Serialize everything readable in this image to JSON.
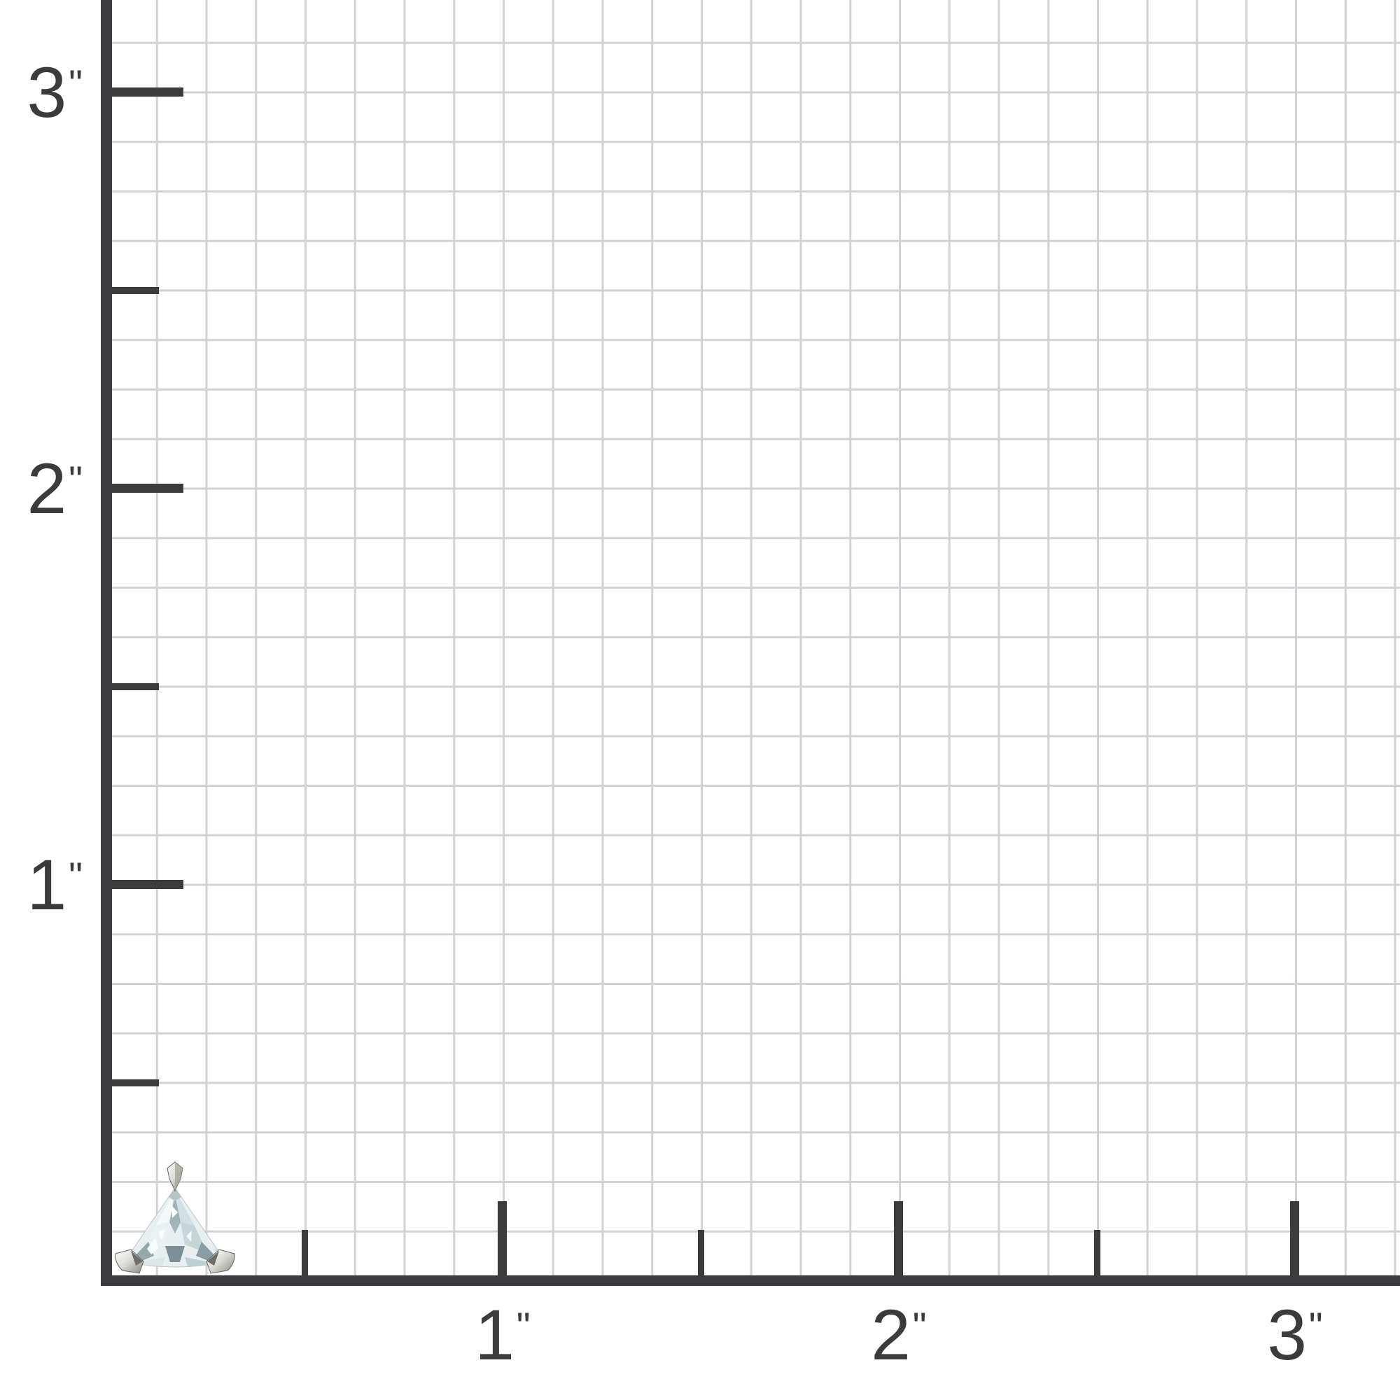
{
  "scene": {
    "description": "Trillion-cut clear gemstone shown at actual size on inch-ruled graph paper",
    "background_color": "#ffffff"
  },
  "ruler": {
    "unit_mark": "\"",
    "grid_line_color": "#d2d2d6",
    "axis_color": "#3b3b3d",
    "minor_divisions_per_inch": 8,
    "x_axis": {
      "major_ticks": [
        {
          "value": 1,
          "label": "1"
        },
        {
          "value": 2,
          "label": "2"
        },
        {
          "value": 3,
          "label": "3"
        }
      ],
      "half_ticks": [
        0.5,
        1.5,
        2.5
      ]
    },
    "y_axis": {
      "major_ticks": [
        {
          "value": 1,
          "label": "1"
        },
        {
          "value": 2,
          "label": "2"
        },
        {
          "value": 3,
          "label": "3"
        }
      ],
      "half_ticks": [
        0.5,
        1.5,
        2.5
      ]
    }
  },
  "specimen": {
    "name": "trillion-cut gemstone in three-prong setting",
    "stone_color": "#e8eff1",
    "facet_shadow_color": "#7e9096",
    "metal_color": "#c9c9c3"
  }
}
